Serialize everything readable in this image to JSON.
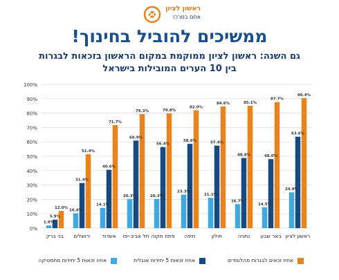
{
  "logo": {
    "line1": "ראשון לציון",
    "line2": "אתם במרכז"
  },
  "header": {
    "title": "ממשיכים להוביל בחינוך!",
    "subtitle1": "גם השנה: ראשון לציון ממוקמת במקום הראשון בזכאות לבגרות",
    "subtitle2": "בין 10 הערים המובילות בישראל"
  },
  "colors": {
    "orange": "#e8831e",
    "navy": "#164a80",
    "lightblue": "#42a8e0"
  },
  "chart_data": {
    "type": "bar",
    "categories": [
      "ראשון לציון",
      "באר שבע",
      "נתניה",
      "חולון",
      "חיפה",
      "פתח תקוה",
      "תל אביב-יפו",
      "אשדוד",
      "ירושלים",
      "בני ברק"
    ],
    "series": [
      {
        "name": "אחוז זכאים לבגרות מהלומדים",
        "values": [
          90.4,
          87.7,
          85.1,
          84.6,
          82.0,
          79.8,
          79.3,
          71.7,
          51.4,
          12.0
        ]
      },
      {
        "name": "אחוז זכאות 5 יחידות אנגלית",
        "values": [
          63.6,
          48.0,
          48.8,
          57.4,
          58.6,
          56.4,
          60.9,
          40.6,
          31.4,
          5.9
        ]
      },
      {
        "name": "אחוז זכאות 5 יחידות מתמטיקה",
        "values": [
          24.9,
          14.5,
          16.7,
          21.1,
          23.3,
          20.3,
          20.3,
          14.1,
          10.4,
          1.9
        ]
      }
    ],
    "value_labels": [
      [
        "90.4%",
        "87.7%",
        "85.1%",
        "84.6%",
        "82.0%",
        "79.8%",
        "79.3%",
        "71.7%",
        "51.4%",
        "12.0%"
      ],
      [
        "63.6%",
        "48.0%",
        "48.8%",
        "57.4%",
        "58.6%",
        "56.4%",
        "60.9%",
        "40.6%",
        "31.4%",
        "5.9%"
      ],
      [
        "24.9%",
        "14.5%",
        "16.7%",
        "21.1%",
        "23.3%",
        "20.3%",
        "20.3%",
        "14.1%",
        "10.4%",
        "1.9%"
      ]
    ],
    "y_ticks": [
      "0%",
      "10%",
      "20%",
      "30%",
      "40%",
      "50%",
      "60%",
      "70%",
      "80%",
      "90%",
      "100%"
    ],
    "ylim": [
      0,
      100
    ],
    "grid": true,
    "legend_position": "bottom"
  }
}
